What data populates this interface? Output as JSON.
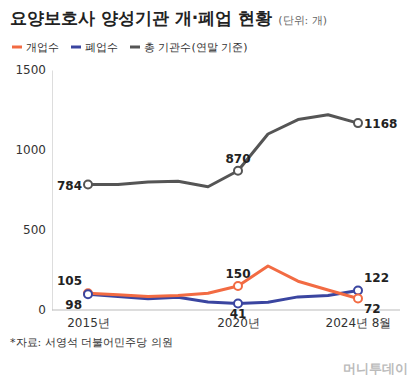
{
  "chart_data": {
    "type": "line",
    "title": "요양보호사 양성기관 개·폐업 현황",
    "subtitle": "(단위: 개)",
    "source": "*자료: 서영석 더불어민주당 의원",
    "credit": "머니투데이",
    "categories": [
      "2015년",
      null,
      null,
      null,
      null,
      "2020년",
      null,
      null,
      null,
      "2024년 8월"
    ],
    "series": [
      {
        "name": "개업수",
        "color": "#f26b43",
        "values": [
          105,
          95,
          85,
          90,
          105,
          150,
          275,
          180,
          125,
          72
        ]
      },
      {
        "name": "폐업수",
        "color": "#3a45a0",
        "values": [
          98,
          85,
          70,
          80,
          50,
          41,
          48,
          82,
          90,
          122
        ]
      },
      {
        "name": "총 기관수(연말 기준)",
        "color": "#555555",
        "values": [
          784,
          784,
          800,
          805,
          770,
          870,
          1100,
          1190,
          1220,
          1168
        ]
      }
    ],
    "ylim": [
      0,
      1500
    ],
    "yticks": [
      0,
      500,
      1000,
      1500
    ],
    "grid": false,
    "legend": "top-left",
    "annotations": [
      {
        "series": 2,
        "index": 0,
        "text": "784"
      },
      {
        "series": 2,
        "index": 5,
        "text": "870"
      },
      {
        "series": 2,
        "index": 9,
        "text": "1168"
      },
      {
        "series": 0,
        "index": 0,
        "text": "105"
      },
      {
        "series": 1,
        "index": 0,
        "text": "98"
      },
      {
        "series": 0,
        "index": 5,
        "text": "150"
      },
      {
        "series": 1,
        "index": 5,
        "text": "41"
      },
      {
        "series": 1,
        "index": 9,
        "text": "122"
      },
      {
        "series": 0,
        "index": 9,
        "text": "72"
      }
    ]
  }
}
